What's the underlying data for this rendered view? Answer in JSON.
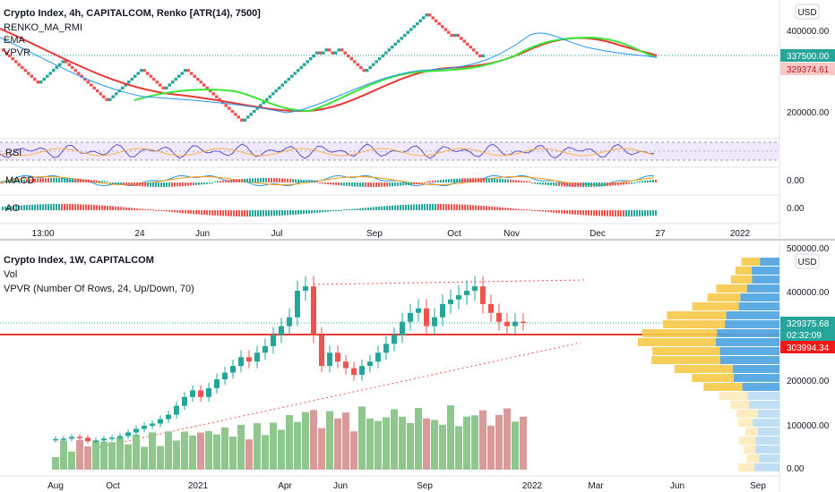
{
  "top_chart": {
    "title": "Crypto Index, 4h, CAPITALCOM, Renko [ATR(14), 7500]",
    "indicators": [
      "RENKO_MA_RMI",
      "EMA",
      "VPVR"
    ],
    "currency": "USD",
    "price_ticks": [
      "400000.00",
      "200000.00"
    ],
    "current_price": "337500.00",
    "ma_price": "329374.61",
    "rsi_label": "RSI",
    "macd_label": "MACD",
    "macd_value": "0.00",
    "ao_label": "AO",
    "ao_value": "0.00",
    "x_ticks": [
      "13:00",
      "24",
      "Jun",
      "Jul",
      "Sep",
      "Oct",
      "Nov",
      "Dec",
      "27",
      "2022"
    ]
  },
  "bottom_chart": {
    "title": "Crypto Index, 1W, CAPITALCOM",
    "indicators": [
      "Vol",
      "VPVR (Number Of Rows, 24, Up/Down, 70)"
    ],
    "currency": "USD",
    "price_ticks": [
      "500000.00",
      "400000.00",
      "200000.00",
      "100000.00",
      "0.00"
    ],
    "current_price": "329375.68",
    "countdown": "02:32:09",
    "line_price": "303994.34",
    "x_ticks": [
      "Aug",
      "Oct",
      "2021",
      "Apr",
      "Jun",
      "Sep",
      "2022",
      "Mar",
      "Jun",
      "Sep"
    ]
  },
  "colors": {
    "up": "#26a69a",
    "down": "#ef5350",
    "ema_red": "#e53935",
    "ma_green": "#39e639",
    "ma_blue": "#2196f3",
    "vol_up": "#8fc78f",
    "vol_down": "#d99a9a",
    "vp_orange": "#f7c948",
    "vp_blue": "#4aa3e0"
  },
  "chart_data": [
    {
      "type": "renko",
      "title": "Crypto Index, 4h, CAPITALCOM, Renko [ATR(14), 7500]",
      "ylim": [
        130000,
        470000
      ],
      "x_labels": [
        "13:00",
        "24",
        "Jun",
        "Jul",
        "Sep",
        "Oct",
        "Nov",
        "Dec",
        "27",
        "2022"
      ],
      "path": [
        [
          0,
          350000
        ],
        [
          2,
          300000
        ],
        [
          4,
          260000
        ],
        [
          6,
          290000
        ],
        [
          8,
          320000
        ],
        [
          10,
          290000
        ],
        [
          12,
          250000
        ],
        [
          14,
          215000
        ],
        [
          16,
          245000
        ],
        [
          18,
          285000
        ],
        [
          20,
          300000
        ],
        [
          22,
          280000
        ],
        [
          24,
          245000
        ],
        [
          26,
          270000
        ],
        [
          28,
          300000
        ],
        [
          30,
          260000
        ],
        [
          32,
          225000
        ],
        [
          34,
          185000
        ],
        [
          36,
          160000
        ],
        [
          38,
          190000
        ],
        [
          40,
          225000
        ],
        [
          42,
          270000
        ],
        [
          44,
          310000
        ],
        [
          46,
          345000
        ],
        [
          48,
          330000
        ],
        [
          50,
          350000
        ],
        [
          52,
          330000
        ],
        [
          54,
          355000
        ],
        [
          56,
          340000
        ],
        [
          58,
          290000
        ],
        [
          60,
          315000
        ],
        [
          62,
          350000
        ],
        [
          64,
          370000
        ],
        [
          66,
          395000
        ],
        [
          68,
          420000
        ],
        [
          70,
          445000
        ],
        [
          72,
          420000
        ],
        [
          74,
          380000
        ],
        [
          76,
          390000
        ],
        [
          78,
          360000
        ],
        [
          80,
          340000
        ],
        [
          82,
          330000
        ],
        [
          84,
          340000
        ],
        [
          86,
          325000
        ],
        [
          88,
          337500
        ]
      ],
      "last_price": 337500,
      "ma_price": 329374.61
    },
    {
      "type": "candlestick",
      "title": "Crypto Index, 1W, CAPITALCOM",
      "ylim": [
        0,
        500000
      ],
      "x_labels": [
        "Aug",
        "Oct",
        "2021",
        "Apr",
        "Jun",
        "Sep",
        "2022",
        "Mar",
        "Jun",
        "Sep"
      ],
      "closes": [
        65000,
        66000,
        70000,
        68000,
        60000,
        62000,
        66000,
        68000,
        72000,
        80000,
        88000,
        95000,
        100000,
        110000,
        120000,
        140000,
        160000,
        175000,
        160000,
        180000,
        200000,
        215000,
        230000,
        250000,
        240000,
        260000,
        275000,
        300000,
        320000,
        340000,
        400000,
        410000,
        300000,
        230000,
        260000,
        240000,
        225000,
        210000,
        230000,
        240000,
        260000,
        280000,
        300000,
        330000,
        350000,
        360000,
        320000,
        340000,
        370000,
        380000,
        390000,
        400000,
        410000,
        370000,
        350000,
        330000,
        320000,
        330000,
        329375.68
      ],
      "volume_levels": "unlabeled",
      "last_price": 329375.68,
      "line_price": 303994.34
    }
  ]
}
